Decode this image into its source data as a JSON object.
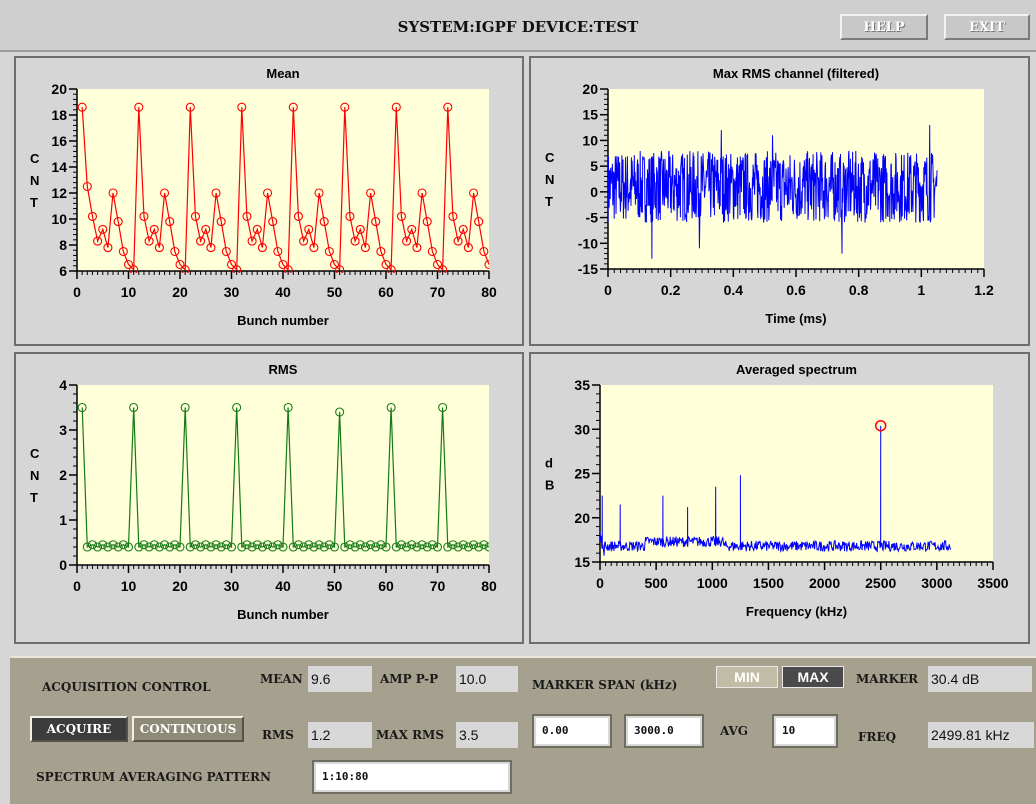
{
  "header": {
    "title": "SYSTEM:IGPF DEVICE:TEST",
    "help_label": "HELP",
    "exit_label": "EXIT"
  },
  "colors": {
    "plot_bg": "#ffffd9",
    "mean": "#ff0000",
    "rms": "#157a15",
    "signal": "#0000ff",
    "marker": "#ff0000",
    "control_bg": "#a6a18f"
  },
  "chart_data": [
    {
      "type": "line",
      "title": "Mean",
      "xlabel": "Bunch number",
      "ylabel": "CNT",
      "xlim": [
        0,
        80
      ],
      "ylim": [
        6,
        20
      ],
      "xticks": [
        0,
        10,
        20,
        30,
        40,
        50,
        60,
        70,
        80
      ],
      "yticks": [
        6,
        8,
        10,
        12,
        14,
        16,
        18,
        20
      ],
      "series": [
        {
          "x_start": 1,
          "x_step": 1,
          "markers": "circle",
          "values": [
            18.6,
            12.5,
            10.2,
            8.3,
            9.2,
            7.8,
            12.0,
            9.8,
            7.5,
            6.5,
            6.1,
            18.6,
            10.2,
            8.3,
            9.2,
            7.8,
            12.0,
            9.8,
            7.5,
            6.5,
            6.1,
            18.6,
            10.2,
            8.3,
            9.2,
            7.8,
            12.0,
            9.8,
            7.5,
            6.5,
            6.1,
            18.6,
            10.2,
            8.3,
            9.2,
            7.8,
            12.0,
            9.8,
            7.5,
            6.5,
            6.1,
            18.6,
            10.2,
            8.3,
            9.2,
            7.8,
            12.0,
            9.8,
            7.5,
            6.5,
            6.1,
            18.6,
            10.2,
            8.3,
            9.2,
            7.8,
            12.0,
            9.8,
            7.5,
            6.5,
            6.1,
            18.6,
            10.2,
            8.3,
            9.2,
            7.8,
            12.0,
            9.8,
            7.5,
            6.5,
            6.1,
            18.6,
            10.2,
            8.3,
            9.2,
            7.8,
            12.0,
            9.8,
            7.5,
            6.5
          ]
        }
      ]
    },
    {
      "type": "line",
      "title": "Max RMS channel (filtered)",
      "xlabel": "Time (ms)",
      "ylabel": "CNT",
      "xlim": [
        0,
        1.2
      ],
      "ylim": [
        -15,
        20
      ],
      "xticks": [
        0,
        0.2,
        0.4,
        0.6,
        0.8,
        1,
        1.2
      ],
      "yticks": [
        -15,
        -10,
        -5,
        0,
        5,
        10,
        15,
        20
      ],
      "series": [
        {
          "x_range": [
            0,
            1.05
          ],
          "typical_range": [
            -6,
            8
          ],
          "extremes": [
            -13,
            13
          ]
        }
      ]
    },
    {
      "type": "line",
      "title": "RMS",
      "xlabel": "Bunch number",
      "ylabel": "CNT",
      "xlim": [
        0,
        80
      ],
      "ylim": [
        0,
        4
      ],
      "xticks": [
        0,
        10,
        20,
        30,
        40,
        50,
        60,
        70,
        80
      ],
      "yticks": [
        0,
        1,
        2,
        3,
        4
      ],
      "series": [
        {
          "x_start": 1,
          "x_step": 1,
          "markers": "circle",
          "values": [
            3.5,
            0.4,
            0.45,
            0.4,
            0.45,
            0.4,
            0.45,
            0.4,
            0.45,
            0.4,
            3.5,
            0.4,
            0.45,
            0.4,
            0.45,
            0.4,
            0.45,
            0.4,
            0.45,
            0.4,
            3.5,
            0.4,
            0.45,
            0.4,
            0.45,
            0.4,
            0.45,
            0.4,
            0.45,
            0.4,
            3.5,
            0.4,
            0.45,
            0.4,
            0.45,
            0.4,
            0.45,
            0.4,
            0.45,
            0.4,
            3.5,
            0.4,
            0.45,
            0.4,
            0.45,
            0.4,
            0.45,
            0.4,
            0.45,
            0.4,
            3.4,
            0.4,
            0.45,
            0.4,
            0.45,
            0.4,
            0.45,
            0.4,
            0.45,
            0.4,
            3.5,
            0.4,
            0.45,
            0.4,
            0.45,
            0.4,
            0.45,
            0.4,
            0.45,
            0.4,
            3.5,
            0.4,
            0.45,
            0.4,
            0.45,
            0.4,
            0.45,
            0.4,
            0.45,
            0.4
          ]
        }
      ]
    },
    {
      "type": "line",
      "title": "Averaged spectrum",
      "xlabel": "Frequency (kHz)",
      "ylabel": "dB",
      "xlim": [
        0,
        3500
      ],
      "ylim": [
        15,
        35
      ],
      "xticks": [
        0,
        500,
        1000,
        1500,
        2000,
        2500,
        3000,
        3500
      ],
      "yticks": [
        15,
        20,
        25,
        30,
        35
      ],
      "series": [
        {
          "x_range": [
            0,
            3125
          ],
          "baseline": 16.8,
          "spikes": [
            [
              20,
              22.5
            ],
            [
              180,
              21.5
            ],
            [
              560,
              22.5
            ],
            [
              780,
              21.2
            ],
            [
              1030,
              23.5
            ],
            [
              1250,
              24.8
            ],
            [
              2499.81,
              30.4
            ]
          ],
          "marker": [
            2499.81,
            30.4
          ]
        }
      ]
    }
  ],
  "controls": {
    "acq_label": "ACQUISITION CONTROL",
    "acquire_label": "ACQUIRE",
    "continuous_label": "CONTINUOUS",
    "mean_label": "MEAN",
    "mean_value": "9.6",
    "rms_label": "RMS",
    "rms_value": "1.2",
    "amp_label": "AMP P-P",
    "amp_value": "10.0",
    "maxrms_label": "MAX RMS",
    "maxrms_value": "3.5",
    "marker_span_label": "MARKER SPAN (kHz)",
    "span_low": "0.00",
    "span_high": "3000.0",
    "min_label": "MIN",
    "max_label": "MAX",
    "avg_label": "AVG",
    "avg_value": "10",
    "marker_label": "MARKER",
    "marker_value": "30.4 dB",
    "freq_label": "FREQ",
    "freq_value": "2499.81 kHz",
    "pattern_label": "SPECTRUM AVERAGING PATTERN",
    "pattern_value": "1:10:80"
  }
}
